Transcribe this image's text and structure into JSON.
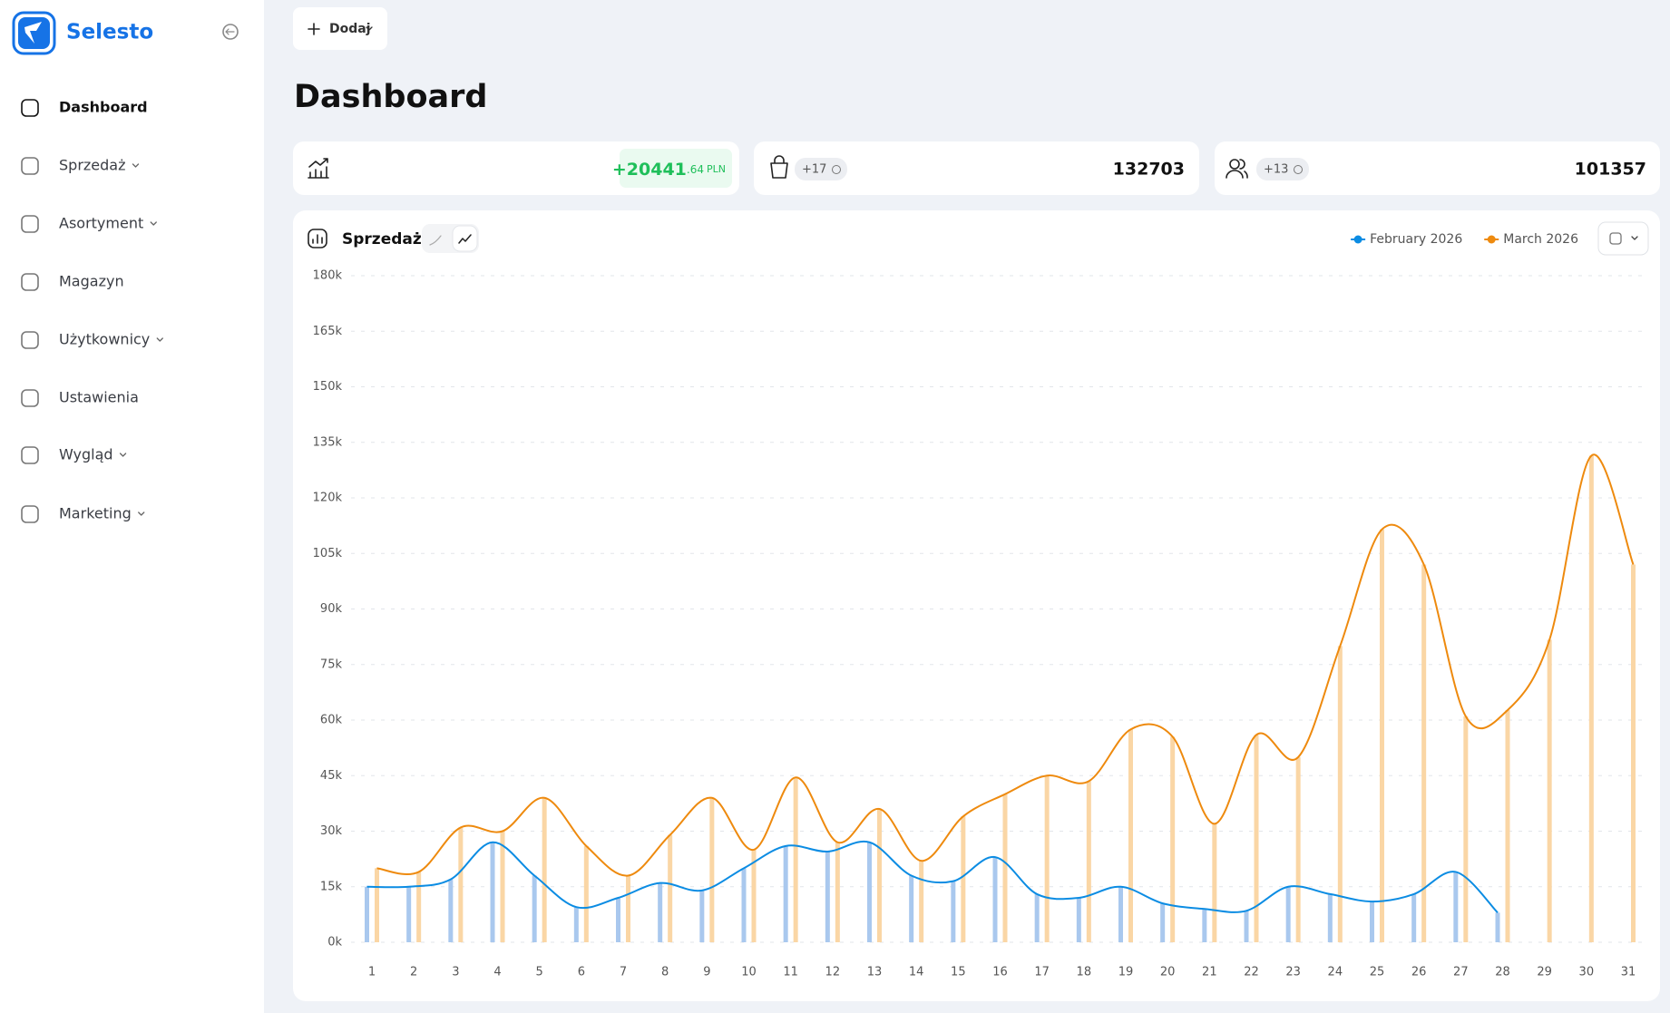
{
  "sidebar": {
    "brand": "Selesto",
    "nav": [
      "Dashboard",
      "Sprzedaż",
      "Asortyment",
      "Magazyn",
      "Użytkownicy",
      "Ustawienia",
      "Wygląd",
      "Marketing"
    ],
    "active": 0,
    "dropdown": [
      false,
      true,
      true,
      false,
      true,
      false,
      true,
      true
    ]
  },
  "toolbar": {
    "add_button": "Dodaj"
  },
  "header": {
    "title": "Dashboard"
  },
  "stats": [
    {
      "value": "+20441",
      "decimals": ".64",
      "currency": "PLN"
    },
    {
      "badge": "+17",
      "value": "132703"
    },
    {
      "badge": "+13",
      "value": "101357"
    }
  ],
  "chart_data": {
    "type": "line",
    "title": "Sprzedaż",
    "categories": [
      "1",
      "2",
      "3",
      "4",
      "5",
      "6",
      "7",
      "8",
      "9",
      "10",
      "11",
      "12",
      "13",
      "14",
      "15",
      "16",
      "17",
      "18",
      "19",
      "20",
      "21",
      "22",
      "23",
      "24",
      "25",
      "26",
      "27",
      "28",
      "29",
      "30",
      "31"
    ],
    "series": [
      {
        "name": "February 2026",
        "color": "#0b8ce3",
        "bar_color": "#a9c8ee",
        "values": [
          15000,
          15000,
          17000,
          27000,
          18000,
          9500,
          12000,
          16000,
          14000,
          20000,
          26000,
          24500,
          27000,
          18000,
          16500,
          23000,
          13000,
          12000,
          15000,
          10500,
          9000,
          8500,
          15000,
          13000,
          11000,
          13000,
          19000,
          8000,
          null,
          null,
          null
        ]
      },
      {
        "name": "March 2026",
        "color": "#ee8a0e",
        "bar_color": "#fad6a5",
        "values": [
          20000,
          19000,
          31000,
          30000,
          39000,
          26000,
          18000,
          29000,
          39000,
          25000,
          44500,
          27000,
          36000,
          22000,
          34000,
          40000,
          45000,
          43500,
          57500,
          55500,
          32000,
          56000,
          50000,
          80000,
          111500,
          102000,
          61000,
          62700,
          81700,
          131400,
          102000
        ]
      }
    ],
    "ylim": [
      0,
      180000
    ],
    "yticks": [
      {
        "value": 0,
        "label": "0k"
      },
      {
        "value": 15000,
        "label": "15k"
      },
      {
        "value": 30000,
        "label": "30k"
      },
      {
        "value": 45000,
        "label": "45k"
      },
      {
        "value": 60000,
        "label": "60k"
      },
      {
        "value": 75000,
        "label": "75k"
      },
      {
        "value": 90000,
        "label": "90k"
      },
      {
        "value": 105000,
        "label": "105k"
      },
      {
        "value": 120000,
        "label": "120k"
      },
      {
        "value": 135000,
        "label": "135k"
      },
      {
        "value": 150000,
        "label": "150k"
      },
      {
        "value": 165000,
        "label": "165k"
      },
      {
        "value": 180000,
        "label": "180k"
      }
    ],
    "grid": true,
    "legend": "top-right"
  }
}
